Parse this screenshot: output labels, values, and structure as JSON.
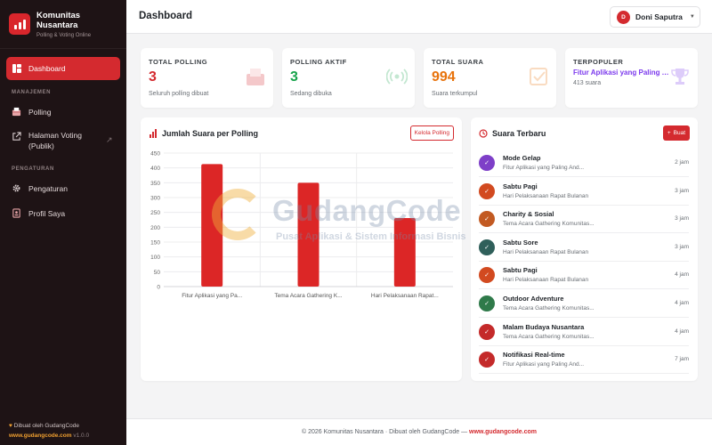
{
  "brand": {
    "name": "Komunitas Nusantara",
    "name_line1": "Komunitas",
    "name_line2": "Nusantara",
    "tagline": "Polling & Voting Online"
  },
  "sidebar": {
    "active": {
      "label": "Dashboard",
      "icon": "dashboard-icon"
    },
    "section_manage": "MANAJEMEN",
    "items_manage": [
      {
        "label": "Polling",
        "icon": "ballot-box-icon"
      },
      {
        "label_line1": "Halaman Voting",
        "label_line2": "(Publik)",
        "icon": "external-link-icon",
        "trailing_icon": "arrow-up-right-icon"
      }
    ],
    "section_settings": "PENGATURAN",
    "items_settings": [
      {
        "label": "Pengaturan",
        "icon": "gear-icon"
      },
      {
        "label": "Profil Saya",
        "icon": "id-card-icon"
      }
    ],
    "footer": {
      "credit": "Dibuat oleh GudangCode",
      "url": "www.gudangcode.com",
      "version": "v1.0.0"
    }
  },
  "header": {
    "title": "Dashboard",
    "user": {
      "initial": "D",
      "name": "Doni Saputra"
    }
  },
  "stats": [
    {
      "label": "TOTAL POLLING",
      "value": "3",
      "sub": "Seluruh polling dibuat",
      "color": "#d42a2f",
      "icon": "ballot-box-icon"
    },
    {
      "label": "POLLING AKTIF",
      "value": "3",
      "sub": "Sedang dibuka",
      "color": "#16a34a",
      "icon": "broadcast-icon"
    },
    {
      "label": "TOTAL SUARA",
      "value": "994",
      "sub": "Suara terkumpul",
      "color": "#e8730c",
      "icon": "checkbox-icon"
    },
    {
      "label": "TERPOPULER",
      "value": "Fitur Aplikasi yang Paling Anda Butuhkan?",
      "sub": "413 suara",
      "color": "#7c3aed",
      "icon": "trophy-icon"
    }
  ],
  "chart_card": {
    "title": "Jumlah Suara per Polling",
    "action": "Kelola Polling"
  },
  "chart_data": {
    "type": "bar",
    "categories": [
      "Fitur Aplikasi yang Pa...",
      "Tema Acara Gathering K...",
      "Hari Pelaksanaan Rapat..."
    ],
    "series": [
      {
        "values": [
          413,
          350,
          231
        ]
      }
    ],
    "ylim": [
      0,
      450
    ],
    "yticks": [
      0,
      50,
      100,
      150,
      200,
      250,
      300,
      350,
      400,
      450
    ],
    "bar_color": "#dc2626",
    "grid": true,
    "legend": "none"
  },
  "votes_card": {
    "title": "Suara Terbaru",
    "action": "Buat",
    "items": [
      {
        "title": "Mode Gelap",
        "sub": "Fitur Aplikasi yang Paling And...",
        "time": "2 jam",
        "color": "#7e3fc8"
      },
      {
        "title": "Sabtu Pagi",
        "sub": "Hari Pelaksanaan Rapat Bulanan",
        "time": "3 jam",
        "color": "#d24a20"
      },
      {
        "title": "Charity & Sosial",
        "sub": "Tema Acara Gathering Komunitas...",
        "time": "3 jam",
        "color": "#c25a22"
      },
      {
        "title": "Sabtu Sore",
        "sub": "Hari Pelaksanaan Rapat Bulanan",
        "time": "3 jam",
        "color": "#2f5f5a"
      },
      {
        "title": "Sabtu Pagi",
        "sub": "Hari Pelaksanaan Rapat Bulanan",
        "time": "4 jam",
        "color": "#d24a20"
      },
      {
        "title": "Outdoor Adventure",
        "sub": "Tema Acara Gathering Komunitas...",
        "time": "4 jam",
        "color": "#2f7a4a"
      },
      {
        "title": "Malam Budaya Nusantara",
        "sub": "Tema Acara Gathering Komunitas...",
        "time": "4 jam",
        "color": "#c42a2a"
      },
      {
        "title": "Notifikasi Real-time",
        "sub": "Fitur Aplikasi yang Paling And...",
        "time": "7 jam",
        "color": "#c42a2a"
      }
    ]
  },
  "watermark": {
    "text": "GudangCode",
    "sub": "Pusat Aplikasi & Sistem Informasi Bisnis"
  },
  "footer": {
    "text": "© 2026 Komunitas Nusantara · Dibuat oleh GudangCode —",
    "link": "www.gudangcode.com"
  }
}
